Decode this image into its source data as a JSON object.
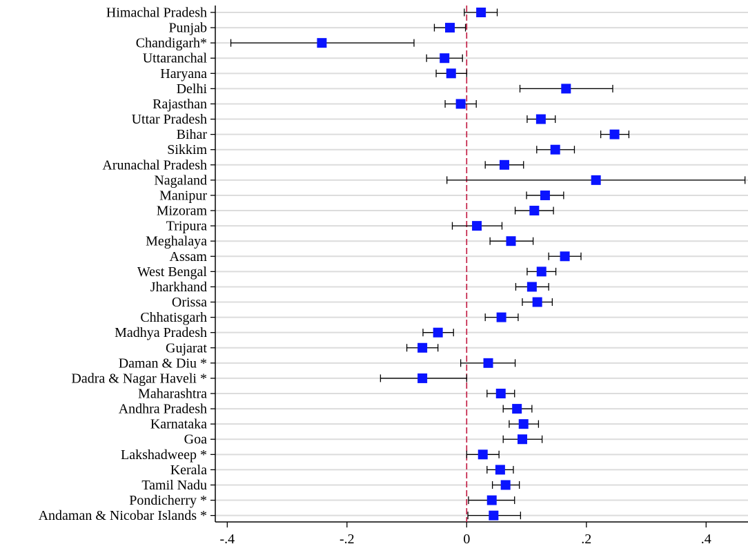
{
  "chart_data": {
    "type": "scatter",
    "orientation": "horizontal",
    "title": "",
    "xlabel": "",
    "ylabel": "",
    "xlim": [
      -0.42,
      0.47
    ],
    "xticks": [
      -0.4,
      -0.2,
      0,
      0.2,
      0.4
    ],
    "xtick_labels": [
      "-.4",
      "-.2",
      "0",
      ".2",
      ".4"
    ],
    "reference_line": {
      "x": 0,
      "color": "#c0143c",
      "style": "dashed"
    },
    "marker_color": "#0a14ff",
    "gridlines": "horizontal",
    "series": [
      {
        "categories": [
          "Himachal Pradesh",
          "Punjab",
          "Chandigarh*",
          "Uttaranchal",
          "Haryana",
          "Delhi",
          "Rajasthan",
          "Uttar Pradesh",
          "Bihar",
          "Sikkim",
          "Arunachal Pradesh",
          "Nagaland",
          "Manipur",
          "Mizoram",
          "Tripura",
          "Meghalaya",
          "Assam",
          "West Bengal",
          "Jharkhand",
          "Orissa",
          "Chhatisgarh",
          "Madhya Pradesh",
          "Gujarat",
          "Daman & Diu *",
          "Dadra & Nagar Haveli *",
          "Maharashtra",
          "Andhra Pradesh",
          "Karnataka",
          "Goa",
          "Lakshadweep *",
          "Kerala",
          "Tamil Nadu",
          "Pondicherry *",
          "Andaman & Nicobar Islands *"
        ],
        "values": [
          0.024,
          -0.028,
          -0.242,
          -0.037,
          -0.026,
          0.166,
          -0.01,
          0.124,
          0.247,
          0.148,
          0.063,
          0.216,
          0.131,
          0.113,
          0.017,
          0.074,
          0.164,
          0.125,
          0.109,
          0.118,
          0.058,
          -0.048,
          -0.074,
          0.036,
          -0.074,
          0.057,
          0.084,
          0.095,
          0.093,
          0.027,
          0.056,
          0.065,
          0.042,
          0.045
        ],
        "ci_low": [
          -0.004,
          -0.054,
          -0.394,
          -0.067,
          -0.051,
          0.089,
          -0.036,
          0.101,
          0.224,
          0.117,
          0.031,
          -0.033,
          0.1,
          0.081,
          -0.024,
          0.039,
          0.137,
          0.101,
          0.082,
          0.093,
          0.031,
          -0.073,
          -0.1,
          -0.01,
          -0.144,
          0.034,
          0.061,
          0.071,
          0.061,
          0.0,
          0.034,
          0.043,
          0.003,
          0.002
        ],
        "ci_high": [
          0.051,
          -0.002,
          -0.088,
          -0.007,
          0.0,
          0.244,
          0.016,
          0.148,
          0.271,
          0.18,
          0.095,
          0.465,
          0.162,
          0.145,
          0.059,
          0.111,
          0.191,
          0.149,
          0.137,
          0.143,
          0.086,
          -0.022,
          -0.048,
          0.081,
          0.0,
          0.08,
          0.109,
          0.12,
          0.126,
          0.054,
          0.078,
          0.088,
          0.08,
          0.09
        ]
      }
    ]
  }
}
